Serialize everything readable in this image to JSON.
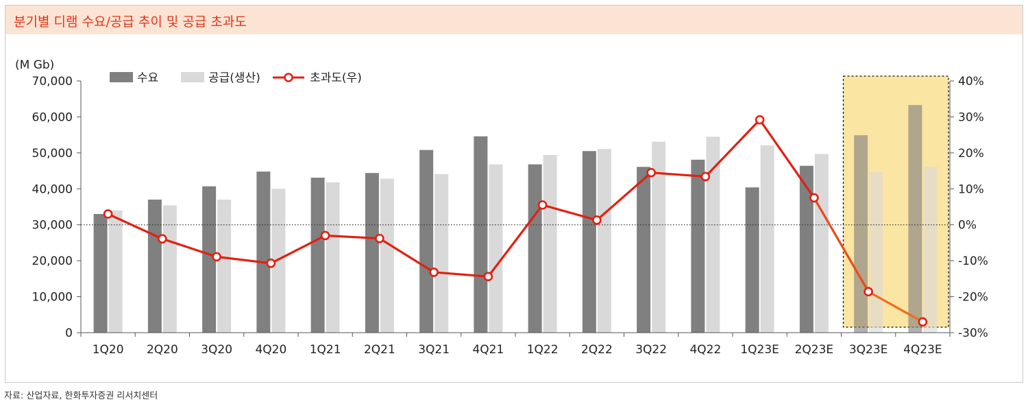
{
  "title": "분기별 디램 수요/공급 추이 및 공급 초과도",
  "source": "자료: 산업자료, 한화투자증권 리서치센터",
  "colors": {
    "demand": "#808080",
    "supply": "#d9d9d9",
    "excess": "#e31f10",
    "forecast_fill": "#fbe5a3",
    "title": "#e0351a"
  },
  "chart_data": {
    "type": "bar",
    "y_unit_label": "(M Gb)",
    "categories": [
      "1Q20",
      "2Q20",
      "3Q20",
      "4Q20",
      "1Q21",
      "2Q21",
      "3Q21",
      "4Q21",
      "1Q22",
      "2Q22",
      "3Q22",
      "4Q22",
      "1Q23E",
      "2Q23E",
      "3Q23E",
      "4Q23E"
    ],
    "series": [
      {
        "name": "수요",
        "type": "bar",
        "axis": "left",
        "values": [
          33000,
          37000,
          40700,
          44800,
          43100,
          44400,
          50800,
          54600,
          46800,
          50500,
          46100,
          48100,
          40400,
          46400,
          54900,
          63300
        ]
      },
      {
        "name": "공급(생산)",
        "type": "bar",
        "axis": "left",
        "values": [
          34000,
          35400,
          37000,
          40000,
          41800,
          42800,
          44100,
          46800,
          49400,
          51100,
          53100,
          54500,
          52100,
          49700,
          44700,
          46100
        ]
      },
      {
        "name": "초과도(우)",
        "type": "line",
        "axis": "right",
        "values": [
          3.0,
          -3.9,
          -8.9,
          -10.7,
          -3.0,
          -3.8,
          -13.2,
          -14.4,
          5.5,
          1.3,
          14.5,
          13.4,
          29.2,
          7.5,
          -18.6,
          -27.0
        ]
      }
    ],
    "ylim_left": [
      0,
      70000
    ],
    "yticks_left": [
      "0",
      "10,000",
      "20,000",
      "30,000",
      "40,000",
      "50,000",
      "60,000",
      "70,000"
    ],
    "ylim_right": [
      -30,
      40
    ],
    "yticks_right": [
      "-30%",
      "-20%",
      "-10%",
      "0%",
      "10%",
      "20%",
      "30%",
      "40%"
    ],
    "forecast_highlight": [
      "3Q23E",
      "4Q23E"
    ],
    "reference_line": "0%",
    "legend_position": "top-left"
  }
}
